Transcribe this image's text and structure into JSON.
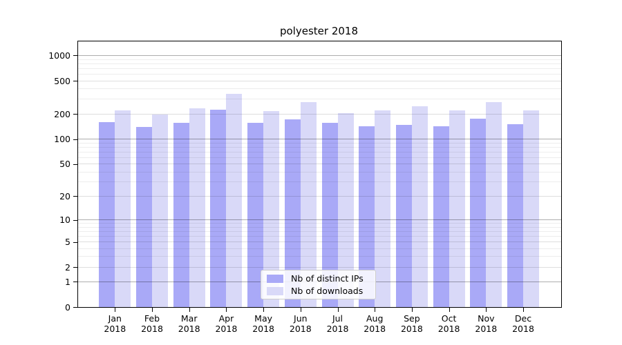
{
  "title": "polyester 2018",
  "legend": {
    "items": [
      {
        "label": "Nb of distinct IPs",
        "color": "#a9a9f7"
      },
      {
        "label": "Nb of downloads",
        "color": "#d9d9f8"
      }
    ]
  },
  "chart_data": {
    "type": "bar",
    "title": "polyester 2018",
    "categories": [
      "Jan 2018",
      "Feb 2018",
      "Mar 2018",
      "Apr 2018",
      "May 2018",
      "Jun 2018",
      "Jul 2018",
      "Aug 2018",
      "Sep 2018",
      "Oct 2018",
      "Nov 2018",
      "Dec 2018"
    ],
    "x_months": [
      "Jan",
      "Feb",
      "Mar",
      "Apr",
      "May",
      "Jun",
      "Jul",
      "Aug",
      "Sep",
      "Oct",
      "Nov",
      "Dec"
    ],
    "x_year": "2018",
    "series": [
      {
        "name": "Nb of distinct IPs",
        "color": "#a9a9f7",
        "values": [
          160,
          139,
          158,
          226,
          156,
          171,
          158,
          142,
          148,
          142,
          177,
          151
        ]
      },
      {
        "name": "Nb of downloads",
        "color": "#d9d9f8",
        "values": [
          221,
          197,
          233,
          346,
          216,
          277,
          204,
          222,
          246,
          220,
          280,
          219
        ]
      }
    ],
    "xlabel": "",
    "ylabel": "",
    "yscale": "log10(1+x)",
    "ylim": [
      0,
      1470
    ],
    "ytick_values": [
      0,
      1,
      2,
      5,
      10,
      20,
      50,
      100,
      200,
      500,
      1000
    ],
    "ytick_labels": [
      "0",
      "1",
      "2",
      "5",
      "10",
      "20",
      "50",
      "100",
      "200",
      "500",
      "1000"
    ],
    "grid": "horizontal, major dark at decades, minor light",
    "legend_position": "lower-center"
  }
}
